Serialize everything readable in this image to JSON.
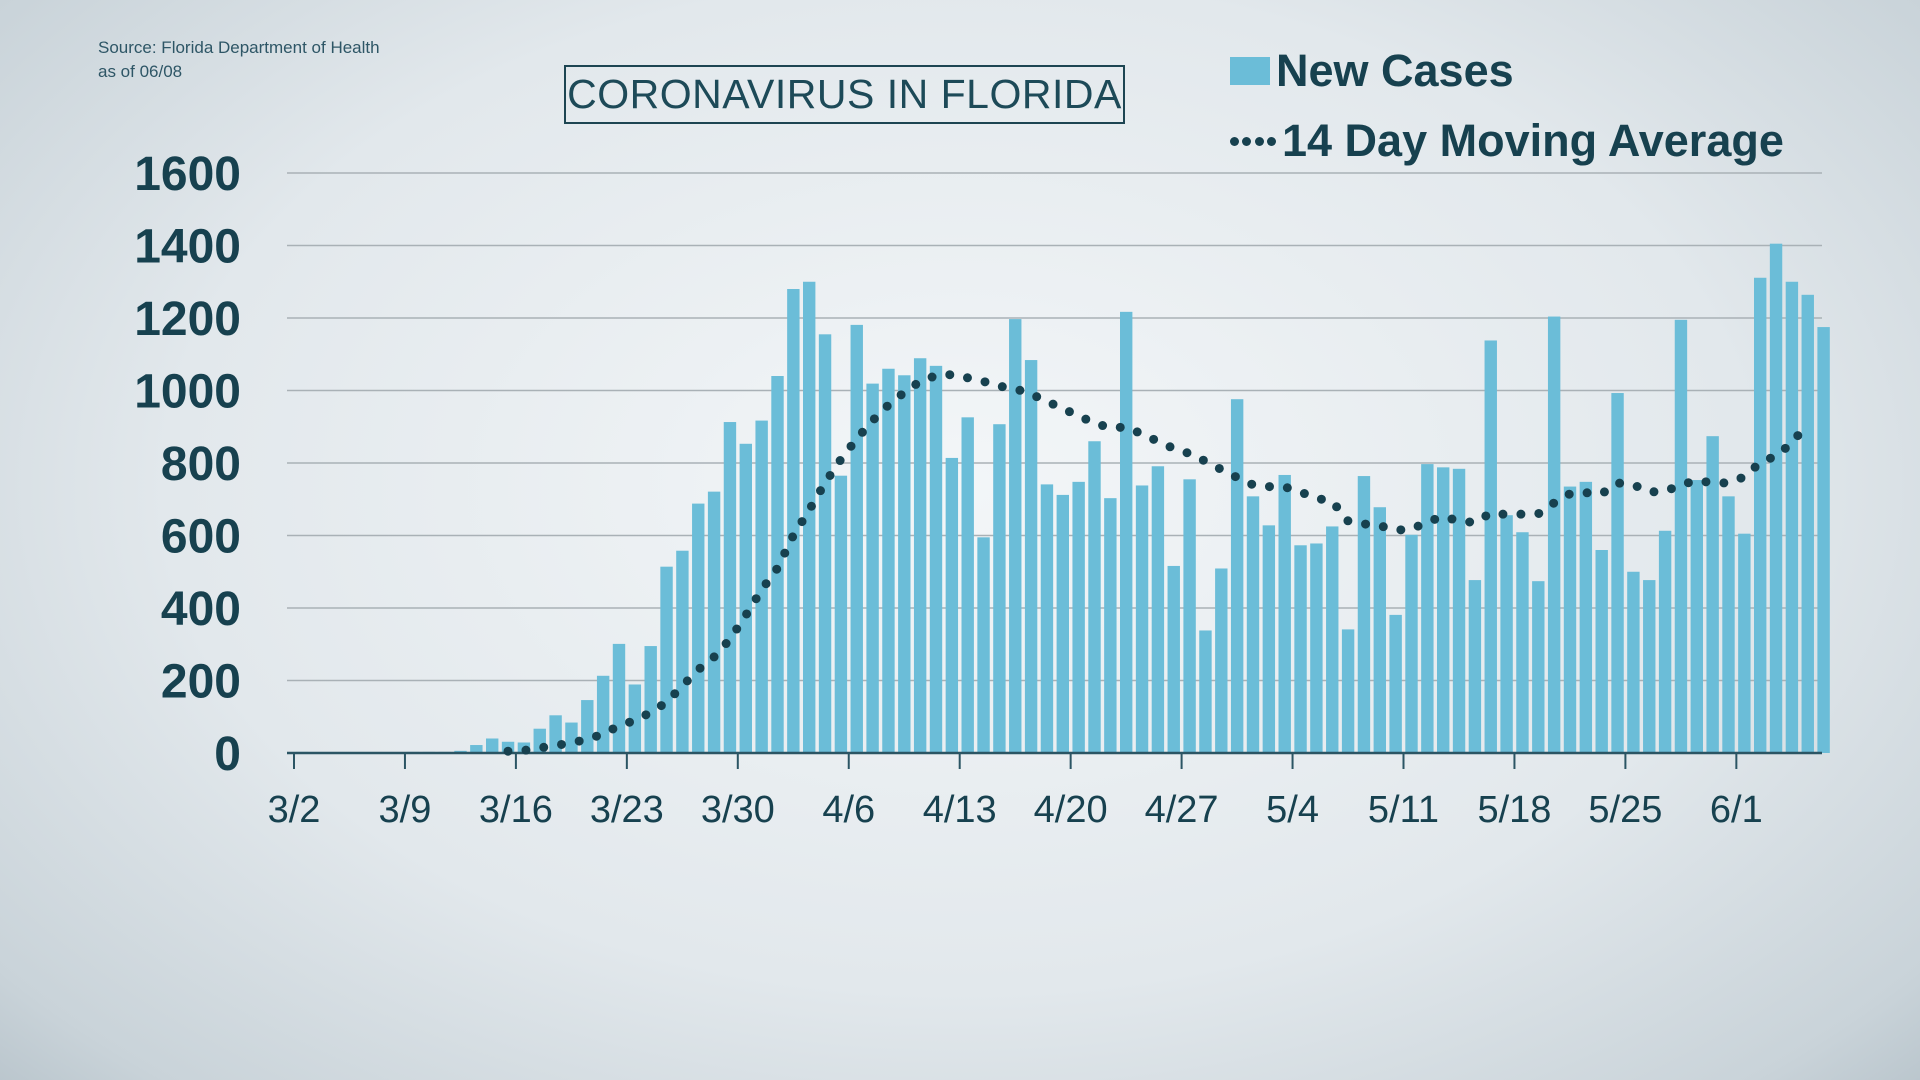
{
  "source": {
    "line1": "Source: Florida Department of Health",
    "line2": "as of 06/08"
  },
  "title": "CORONAVIRUS IN FLORIDA",
  "legend": {
    "bars": "New Cases",
    "line": "14 Day Moving Average"
  },
  "colors": {
    "bar": "#6bbdd8",
    "line": "#17414f",
    "text": "#17414f",
    "grid": "#a9b1b6"
  },
  "chart_data": {
    "type": "bar",
    "title": "CORONAVIRUS IN FLORIDA",
    "xlabel": "",
    "ylabel": "",
    "ylim": [
      0,
      1600
    ],
    "y_ticks": [
      0,
      200,
      400,
      600,
      800,
      1000,
      1200,
      1400,
      1600
    ],
    "x_tick_labels": [
      "3/2",
      "3/9",
      "3/16",
      "3/23",
      "3/30",
      "4/6",
      "4/13",
      "4/20",
      "4/27",
      "5/4",
      "5/11",
      "5/18",
      "5/25",
      "6/1"
    ],
    "grid": true,
    "legend_position": "top-right",
    "categories": [
      "3/2",
      "3/3",
      "3/4",
      "3/5",
      "3/6",
      "3/7",
      "3/8",
      "3/9",
      "3/10",
      "3/11",
      "3/12",
      "3/13",
      "3/14",
      "3/15",
      "3/16",
      "3/17",
      "3/18",
      "3/19",
      "3/20",
      "3/21",
      "3/22",
      "3/23",
      "3/24",
      "3/25",
      "3/26",
      "3/27",
      "3/28",
      "3/29",
      "3/30",
      "3/31",
      "4/1",
      "4/2",
      "4/3",
      "4/4",
      "4/5",
      "4/6",
      "4/7",
      "4/8",
      "4/9",
      "4/10",
      "4/11",
      "4/12",
      "4/13",
      "4/14",
      "4/15",
      "4/16",
      "4/17",
      "4/18",
      "4/19",
      "4/20",
      "4/21",
      "4/22",
      "4/23",
      "4/24",
      "4/25",
      "4/26",
      "4/27",
      "4/28",
      "4/29",
      "4/30",
      "5/1",
      "5/2",
      "5/3",
      "5/4",
      "5/5",
      "5/6",
      "5/7",
      "5/8",
      "5/9",
      "5/10",
      "5/11",
      "5/12",
      "5/13",
      "5/14",
      "5/15",
      "5/16",
      "5/17",
      "5/18",
      "5/19",
      "5/20",
      "5/21",
      "5/22",
      "5/23",
      "5/24",
      "5/25",
      "5/26",
      "5/27",
      "5/28",
      "5/29",
      "5/30",
      "5/31",
      "6/1",
      "6/2",
      "6/3",
      "6/4",
      "6/5",
      "6/6"
    ],
    "series": [
      {
        "name": "New Cases",
        "type": "bar",
        "values": [
          3,
          0,
          0,
          0,
          0,
          2,
          0,
          3,
          3,
          3,
          6,
          22,
          40,
          31,
          29,
          67,
          104,
          84,
          146,
          213,
          301,
          189,
          295,
          514,
          558,
          688,
          721,
          913,
          853,
          917,
          1040,
          1280,
          1300,
          1155,
          765,
          1181,
          1019,
          1060,
          1042,
          1089,
          1068,
          814,
          926,
          595,
          907,
          1197,
          1084,
          741,
          712,
          748,
          860,
          703,
          1217,
          738,
          791,
          516,
          755,
          338,
          509,
          976,
          708,
          628,
          767,
          573,
          578,
          625,
          341,
          764,
          678,
          381,
          602,
          797,
          788,
          784,
          477,
          1138,
          656,
          609,
          474,
          1204,
          735,
          748,
          560,
          993,
          500,
          477,
          613,
          1195,
          753,
          874,
          708,
          605,
          1311,
          1405,
          1300,
          1264,
          1175
        ]
      },
      {
        "name": "14 Day Moving Average",
        "type": "line",
        "values": [
          null,
          null,
          null,
          null,
          null,
          null,
          null,
          null,
          null,
          null,
          null,
          null,
          null,
          5,
          7,
          14,
          21,
          28,
          38,
          52,
          75,
          90,
          112,
          140,
          185,
          230,
          265,
          314,
          380,
          450,
          510,
          600,
          670,
          745,
          810,
          867,
          917,
          960,
          995,
          1025,
          1041,
          1044,
          1035,
          1025,
          1012,
          1005,
          990,
          970,
          950,
          930,
          910,
          897,
          899,
          880,
          860,
          840,
          826,
          805,
          782,
          760,
          740,
          735,
          734,
          720,
          703,
          694,
          640,
          632,
          627,
          615,
          617,
          638,
          652,
          640,
          636,
          662,
          658,
          659,
          660,
          690,
          715,
          718,
          715,
          745,
          740,
          720,
          722,
          740,
          752,
          745,
          745,
          762,
          801,
          820,
          855,
          911,
          null
        ]
      }
    ]
  }
}
